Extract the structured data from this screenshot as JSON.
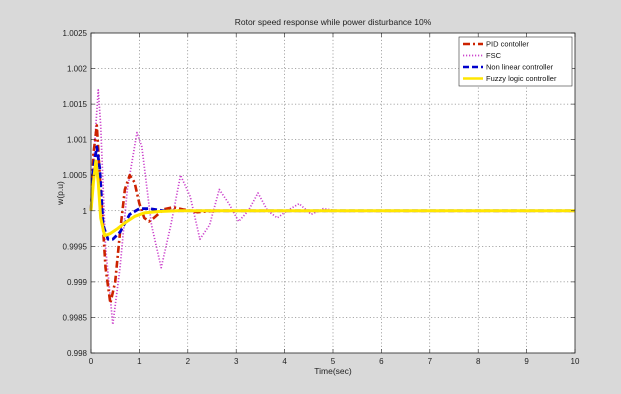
{
  "chart_data": {
    "type": "line",
    "title": "Rotor speed response while power disturbance 10%",
    "xlabel": "Time(sec)",
    "ylabel": "w(p.u)",
    "xlim": [
      0,
      10
    ],
    "ylim": [
      0.998,
      1.0025
    ],
    "xticks": [
      0,
      1,
      2,
      3,
      4,
      5,
      6,
      7,
      8,
      9,
      10
    ],
    "xtick_labels": [
      "0",
      "1",
      "2",
      "3",
      "4",
      "5",
      "6",
      "7",
      "8",
      "9",
      "10"
    ],
    "yticks": [
      0.998,
      0.9985,
      0.999,
      0.9995,
      1.0,
      1.0005,
      1.001,
      1.0015,
      1.002,
      1.0025
    ],
    "ytick_labels": [
      "0.998",
      "0.9985",
      "0.999",
      "0.9995",
      "1",
      "1.0005",
      "1.001",
      "1.0015",
      "1.002",
      "1.0025"
    ],
    "grid": true,
    "legend_position": "top-right",
    "figure_background": "#d9d9d9",
    "series": [
      {
        "name": "PID contoller",
        "color": "#cc2200",
        "style": "dash-dot",
        "x": [
          0,
          0.05,
          0.12,
          0.2,
          0.3,
          0.4,
          0.5,
          0.6,
          0.7,
          0.8,
          0.9,
          1.0,
          1.1,
          1.2,
          1.3,
          1.5,
          1.7,
          1.9,
          2.2,
          2.6,
          3.0,
          4.0,
          5.0,
          6.0,
          7.0,
          8.0,
          9.0,
          10.0
        ],
        "y": [
          1.0,
          1.0008,
          1.0012,
          1.0003,
          0.9992,
          0.9987,
          0.999,
          0.9997,
          1.0003,
          1.0005,
          1.0004,
          1.0001,
          0.9999,
          0.99985,
          0.9999,
          1.00002,
          1.00005,
          1.00002,
          0.99998,
          1.0,
          1.0,
          1.0,
          1.0,
          1.0,
          1.0,
          1.0,
          1.0,
          1.0
        ]
      },
      {
        "name": "FSC",
        "color": "#cc44cc",
        "style": "dotted",
        "x": [
          0,
          0.05,
          0.1,
          0.15,
          0.2,
          0.3,
          0.45,
          0.6,
          0.75,
          0.95,
          1.05,
          1.25,
          1.45,
          1.65,
          1.85,
          2.05,
          2.25,
          2.45,
          2.65,
          2.85,
          3.05,
          3.25,
          3.45,
          3.65,
          3.85,
          4.05,
          4.3,
          4.55,
          4.8,
          5.1,
          5.5,
          6.0,
          7.0,
          8.0,
          9.0,
          10.0
        ],
        "y": [
          1.0,
          1.0006,
          1.0012,
          1.0017,
          1.0012,
          0.9995,
          0.9984,
          0.9992,
          1.0003,
          1.0011,
          1.0009,
          0.9998,
          0.9992,
          0.9998,
          1.0005,
          1.0002,
          0.9996,
          0.9998,
          1.0003,
          1.0001,
          0.99985,
          1.0,
          1.00025,
          1.0,
          0.9999,
          1.0,
          1.0001,
          0.99995,
          1.00003,
          1.0,
          1.0,
          1.0,
          1.0,
          1.0,
          1.0,
          1.0
        ]
      },
      {
        "name": "Non linear controller",
        "color": "#0000cc",
        "style": "dashed",
        "x": [
          0,
          0.05,
          0.12,
          0.18,
          0.25,
          0.35,
          0.45,
          0.6,
          0.8,
          1.0,
          1.2,
          1.5,
          2.0,
          3.0,
          4.0,
          5.0,
          6.0,
          7.0,
          8.0,
          9.0,
          10.0
        ],
        "y": [
          1.0,
          1.0006,
          1.0009,
          1.0006,
          0.9998,
          0.9996,
          0.9996,
          0.9997,
          0.99995,
          1.00003,
          1.00003,
          1.0,
          1.0,
          1.0,
          1.0,
          1.0,
          1.0,
          1.0,
          1.0,
          1.0,
          1.0
        ]
      },
      {
        "name": "Fuzzy logic controller",
        "color": "#ffe600",
        "style": "solid",
        "x": [
          0,
          0.05,
          0.1,
          0.15,
          0.2,
          0.28,
          0.4,
          0.55,
          0.7,
          0.9,
          1.1,
          1.4,
          1.8,
          2.5,
          3.0,
          4.0,
          5.0,
          6.0,
          7.0,
          8.0,
          9.0,
          10.0
        ],
        "y": [
          1.0,
          1.0004,
          1.0007,
          1.0004,
          0.9999,
          0.99965,
          0.99968,
          0.99975,
          0.99983,
          0.99992,
          0.99997,
          0.99999,
          1.0,
          1.0,
          1.0,
          1.0,
          1.0,
          1.0,
          1.0,
          1.0,
          1.0,
          1.0
        ]
      }
    ]
  }
}
